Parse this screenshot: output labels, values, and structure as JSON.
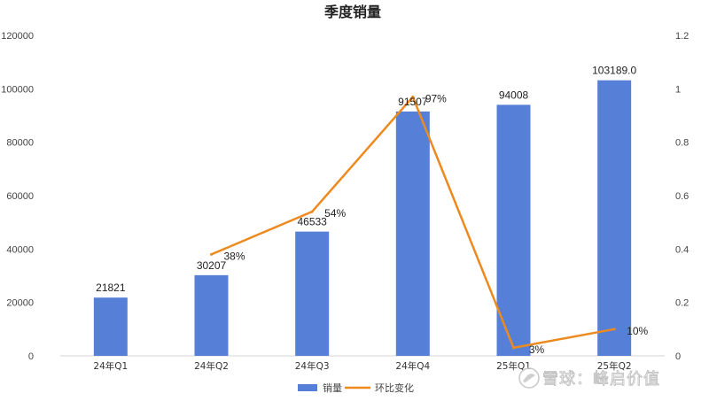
{
  "chart_data": {
    "type": "bar",
    "title": "季度销量",
    "categories": [
      "24年Q1",
      "24年Q2",
      "24年Q3",
      "24年Q4",
      "25年Q1",
      "25年Q2"
    ],
    "series": [
      {
        "name": "销量",
        "type": "bar",
        "axis": "left",
        "values": [
          21821,
          30207,
          46533,
          91507,
          94008,
          103189.0
        ],
        "labels": [
          "21821",
          "30207",
          "46533",
          "91507",
          "94008",
          "103189.0"
        ],
        "color": "#5680d8"
      },
      {
        "name": "环比变化",
        "type": "line",
        "axis": "right",
        "values": [
          null,
          0.38,
          0.54,
          0.97,
          0.03,
          0.1
        ],
        "labels": [
          "",
          "38%",
          "54%",
          "97%",
          "3%",
          "10%"
        ],
        "color": "#ed8a1f"
      }
    ],
    "y_left": {
      "min": 0,
      "max": 120000,
      "ticks": [
        "0",
        "20000",
        "40000",
        "60000",
        "80000",
        "100000",
        "120000"
      ]
    },
    "y_right": {
      "min": 0,
      "max": 1.2,
      "ticks": [
        "0",
        "0.2",
        "0.4",
        "0.6",
        "0.8",
        "1",
        "1.2"
      ]
    },
    "grid": false,
    "legend_position": "bottom"
  },
  "watermark": "雪球：峰启价值"
}
